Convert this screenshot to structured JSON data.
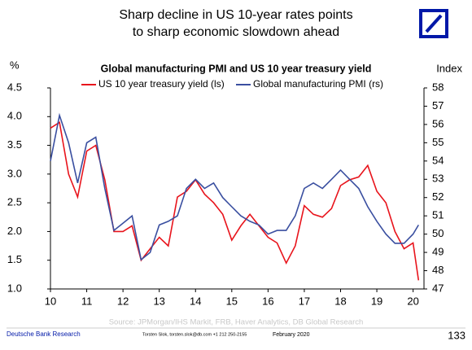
{
  "slide": {
    "headline": [
      "Sharp decline in US 10-year rates points",
      "to sharp economic slowdown ahead"
    ],
    "footer": {
      "brand": "Deutsche Bank Research",
      "contact": "Torsten Slok, torsten.slok@db.com +1 212 250-2155",
      "date": "February 2020",
      "page": "133"
    }
  },
  "chart_data": {
    "type": "line",
    "title": "Global manufacturing PMI and US 10 year treasury yield",
    "ylabel": "%",
    "y2label": "Index",
    "source": "Source: JPMorgan/IHS Markit, FRB, Haver Analytics, DB Global Research",
    "x": [
      10.0,
      10.25,
      10.5,
      10.75,
      11.0,
      11.25,
      11.5,
      11.75,
      12.0,
      12.25,
      12.5,
      12.75,
      13.0,
      13.25,
      13.5,
      13.75,
      14.0,
      14.25,
      14.5,
      14.75,
      15.0,
      15.25,
      15.5,
      15.75,
      16.0,
      16.25,
      16.5,
      16.75,
      17.0,
      17.25,
      17.5,
      17.75,
      18.0,
      18.25,
      18.5,
      18.75,
      19.0,
      19.25,
      19.5,
      19.75,
      20.0,
      20.15
    ],
    "series": [
      {
        "name": "US 10 year treasury yield (ls)",
        "color": "#e8141c",
        "axis": "y",
        "values": [
          3.8,
          3.9,
          3.0,
          2.6,
          3.4,
          3.5,
          2.9,
          2.0,
          2.0,
          2.1,
          1.5,
          1.7,
          1.9,
          1.75,
          2.6,
          2.7,
          2.9,
          2.65,
          2.5,
          2.3,
          1.85,
          2.1,
          2.3,
          2.1,
          1.9,
          1.8,
          1.45,
          1.75,
          2.45,
          2.3,
          2.25,
          2.4,
          2.8,
          2.9,
          2.95,
          3.15,
          2.7,
          2.5,
          2.0,
          1.7,
          1.8,
          1.15
        ]
      },
      {
        "name": "Global manufacturing PMI (rs)",
        "color": "#3a4fa0",
        "axis": "y2",
        "values": [
          54.0,
          56.5,
          55.0,
          52.8,
          55.0,
          55.3,
          52.5,
          50.2,
          50.6,
          51.0,
          48.6,
          49.0,
          50.5,
          50.7,
          51.0,
          52.5,
          53.0,
          52.5,
          52.8,
          52.0,
          51.5,
          51.0,
          50.7,
          50.5,
          50.0,
          50.2,
          50.2,
          51.0,
          52.5,
          52.8,
          52.5,
          53.0,
          53.5,
          53.0,
          52.5,
          51.5,
          50.7,
          50.0,
          49.5,
          49.5,
          50.0,
          50.5
        ]
      }
    ],
    "xlim": [
      10,
      20.3
    ],
    "xticks": [
      10,
      11,
      12,
      13,
      14,
      15,
      16,
      17,
      18,
      19,
      20
    ],
    "ylim": [
      1,
      4.5
    ],
    "yticks": [
      {
        "value": 1,
        "label": "1.0"
      },
      1.5,
      {
        "value": 2,
        "label": "2.0"
      },
      2.5,
      {
        "value": 3,
        "label": "3.0"
      },
      3.5,
      {
        "value": 4,
        "label": "4.0"
      },
      4.5
    ],
    "y2lim": [
      47,
      58
    ],
    "y2ticks": [
      47,
      48,
      49,
      50,
      51,
      52,
      53,
      54,
      55,
      56,
      57,
      58
    ]
  }
}
